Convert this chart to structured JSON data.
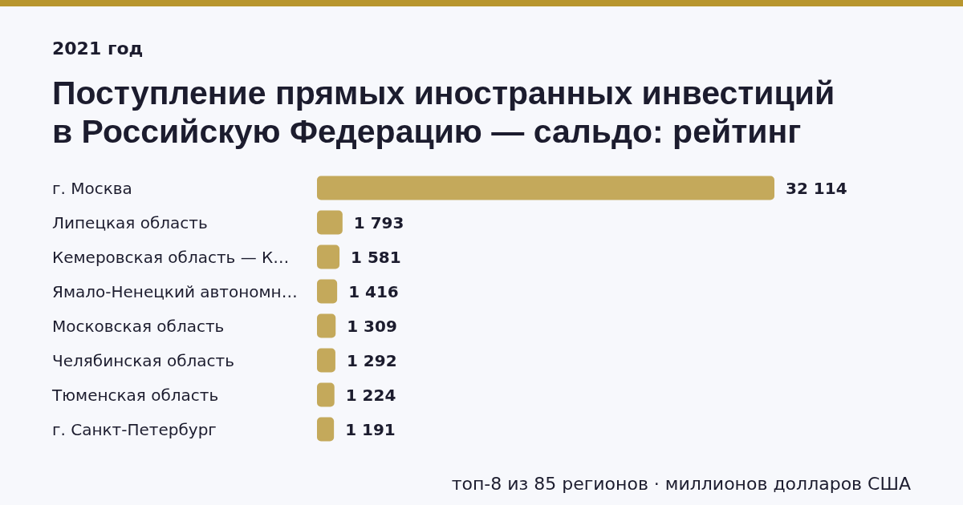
{
  "chart_data": {
    "type": "bar",
    "orientation": "horizontal",
    "title": "Поступление прямых иностранных инвестиций в Российскую Федерацию — сальдо: рейтинг",
    "subtitle": "2021 год",
    "categories": [
      "г. Москва",
      "Липецкая область",
      "Кемеровская область — К…",
      "Ямало-Ненецкий автономн…",
      "Московская область",
      "Челябинская область",
      "Тюменская область",
      "г. Санкт-Петербург"
    ],
    "values": [
      32114,
      1793,
      1581,
      1416,
      1309,
      1292,
      1224,
      1191
    ],
    "value_labels": [
      "32 114",
      "1 793",
      "1 581",
      "1 416",
      "1 309",
      "1 292",
      "1 224",
      "1 191"
    ],
    "color": "#c4a95b",
    "tick_labels": "y",
    "annotations": [
      "топ-8 из 85 регионов · миллионов долларов США"
    ]
  }
}
